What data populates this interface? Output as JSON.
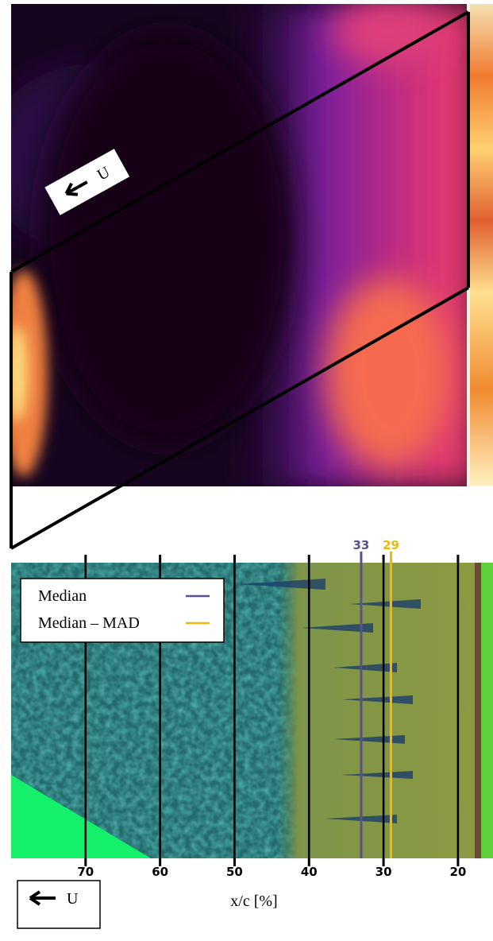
{
  "top_panel": {
    "flow_label": "U"
  },
  "bottom_panel": {
    "xlabel": "x/c [%]",
    "xlim": [
      80,
      15.3
    ],
    "xticks": [
      70,
      60,
      50,
      40,
      30,
      20
    ],
    "legend": [
      {
        "name": "Median",
        "color": "#5b4f8f",
        "value": 33
      },
      {
        "name": "Median – MAD",
        "color": "#f2b705",
        "value": 29
      }
    ],
    "flow_label": "U"
  }
}
